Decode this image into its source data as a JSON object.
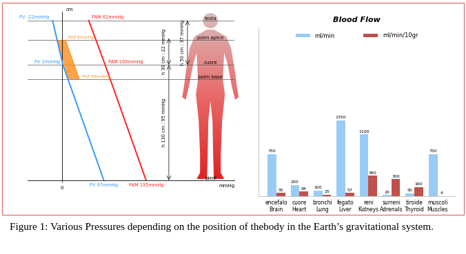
{
  "chart_data": [
    {
      "type": "line",
      "x_label": "mmHg",
      "y_label": "cm",
      "xlim": [
        -80,
        400
      ],
      "ylim": [
        0,
        190
      ],
      "xticks": [
        0
      ],
      "yticks": [],
      "tick_labels": "x",
      "levels": [
        {
          "label": "testa",
          "y": 180
        },
        {
          "label": "polm apice",
          "y": 158
        },
        {
          "label": "cuore",
          "y": 130
        },
        {
          "label": "polm base",
          "y": 114
        },
        {
          "label": "piedi",
          "y": 0
        }
      ],
      "series": [
        {
          "name": "PV",
          "color": "#3399ff",
          "x": [
            97,
            2,
            -22
          ],
          "y": [
            0,
            130,
            180
          ],
          "value_labels": [
            "PV 97mmHg",
            "PV 2mmHg",
            "PV -22mmHg"
          ]
        },
        {
          "name": "PAM",
          "color": "#ff2020",
          "x": [
            195,
            100,
            62
          ],
          "y": [
            0,
            130,
            180
          ],
          "value_labels": [
            "PAM 195mmHg",
            "PAM 100mmHg",
            "PAM 62mmHg"
          ]
        },
        {
          "name": "PAP",
          "color": "#ff8c1a",
          "x": [
            8,
            40
          ],
          "y": [
            158,
            114
          ],
          "value_labels": [
            "PAP 8mmHg",
            "PAP 40mmHg"
          ]
        }
      ],
      "measures": [
        {
          "label": "h 50 cm : 37 mmHg",
          "y": [
            130,
            180
          ]
        },
        {
          "label": "h 30 cm : 22 mmHg",
          "y": [
            130,
            160
          ]
        },
        {
          "label": "h 130 cm : 95 mmHg",
          "y": [
            0,
            130
          ]
        }
      ]
    },
    {
      "type": "bar",
      "title": "Blood Flow",
      "categories": [
        "encefalo\nBrain",
        "cuore\nHeart",
        "bronchi\nLung",
        "fegato\nLiver",
        "reni\nKidneys",
        "surreni\nAdrenals",
        "tiroide\nThyroid",
        "muscoli\nMuscles"
      ],
      "series": [
        {
          "name": "ml/min",
          "color": "#99ccf5",
          "values": [
            750,
            200,
            100,
            1350,
            1100,
            20,
            50,
            750
          ]
        },
        {
          "name": "ml/min/10gr",
          "color": "#c0504d",
          "values": [
            55,
            84,
            25,
            57,
            360,
            300,
            160,
            4
          ]
        }
      ],
      "ylim": [
        0,
        3000
      ],
      "yticks": [],
      "tick_labels": "x",
      "data_labels": true,
      "legend": "upper center"
    }
  ],
  "caption": "Figure 1: Various Pressures depending on the position of thebody in the Earth’s gravitational system."
}
